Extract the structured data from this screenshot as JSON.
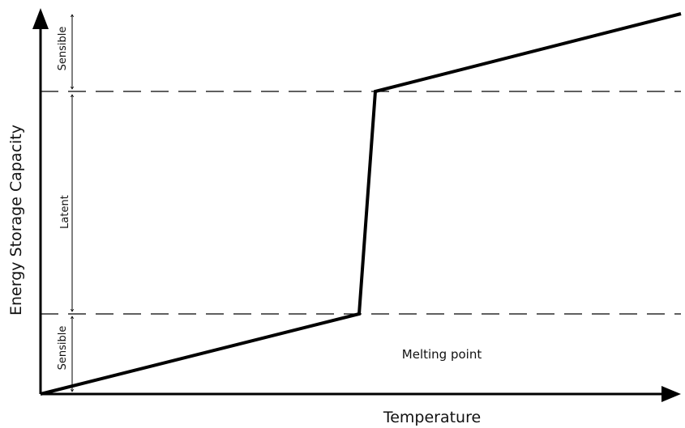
{
  "chart_data": {
    "type": "line",
    "xlabel": "Temperature",
    "ylabel": "Energy Storage Capacity",
    "regions": [
      {
        "name": "Sensible"
      },
      {
        "name": "Latent"
      },
      {
        "name": "Sensible"
      }
    ],
    "annotation": "Melting point",
    "colors": {
      "line": "#000000",
      "dash": "#000000",
      "axis": "#000000"
    }
  }
}
